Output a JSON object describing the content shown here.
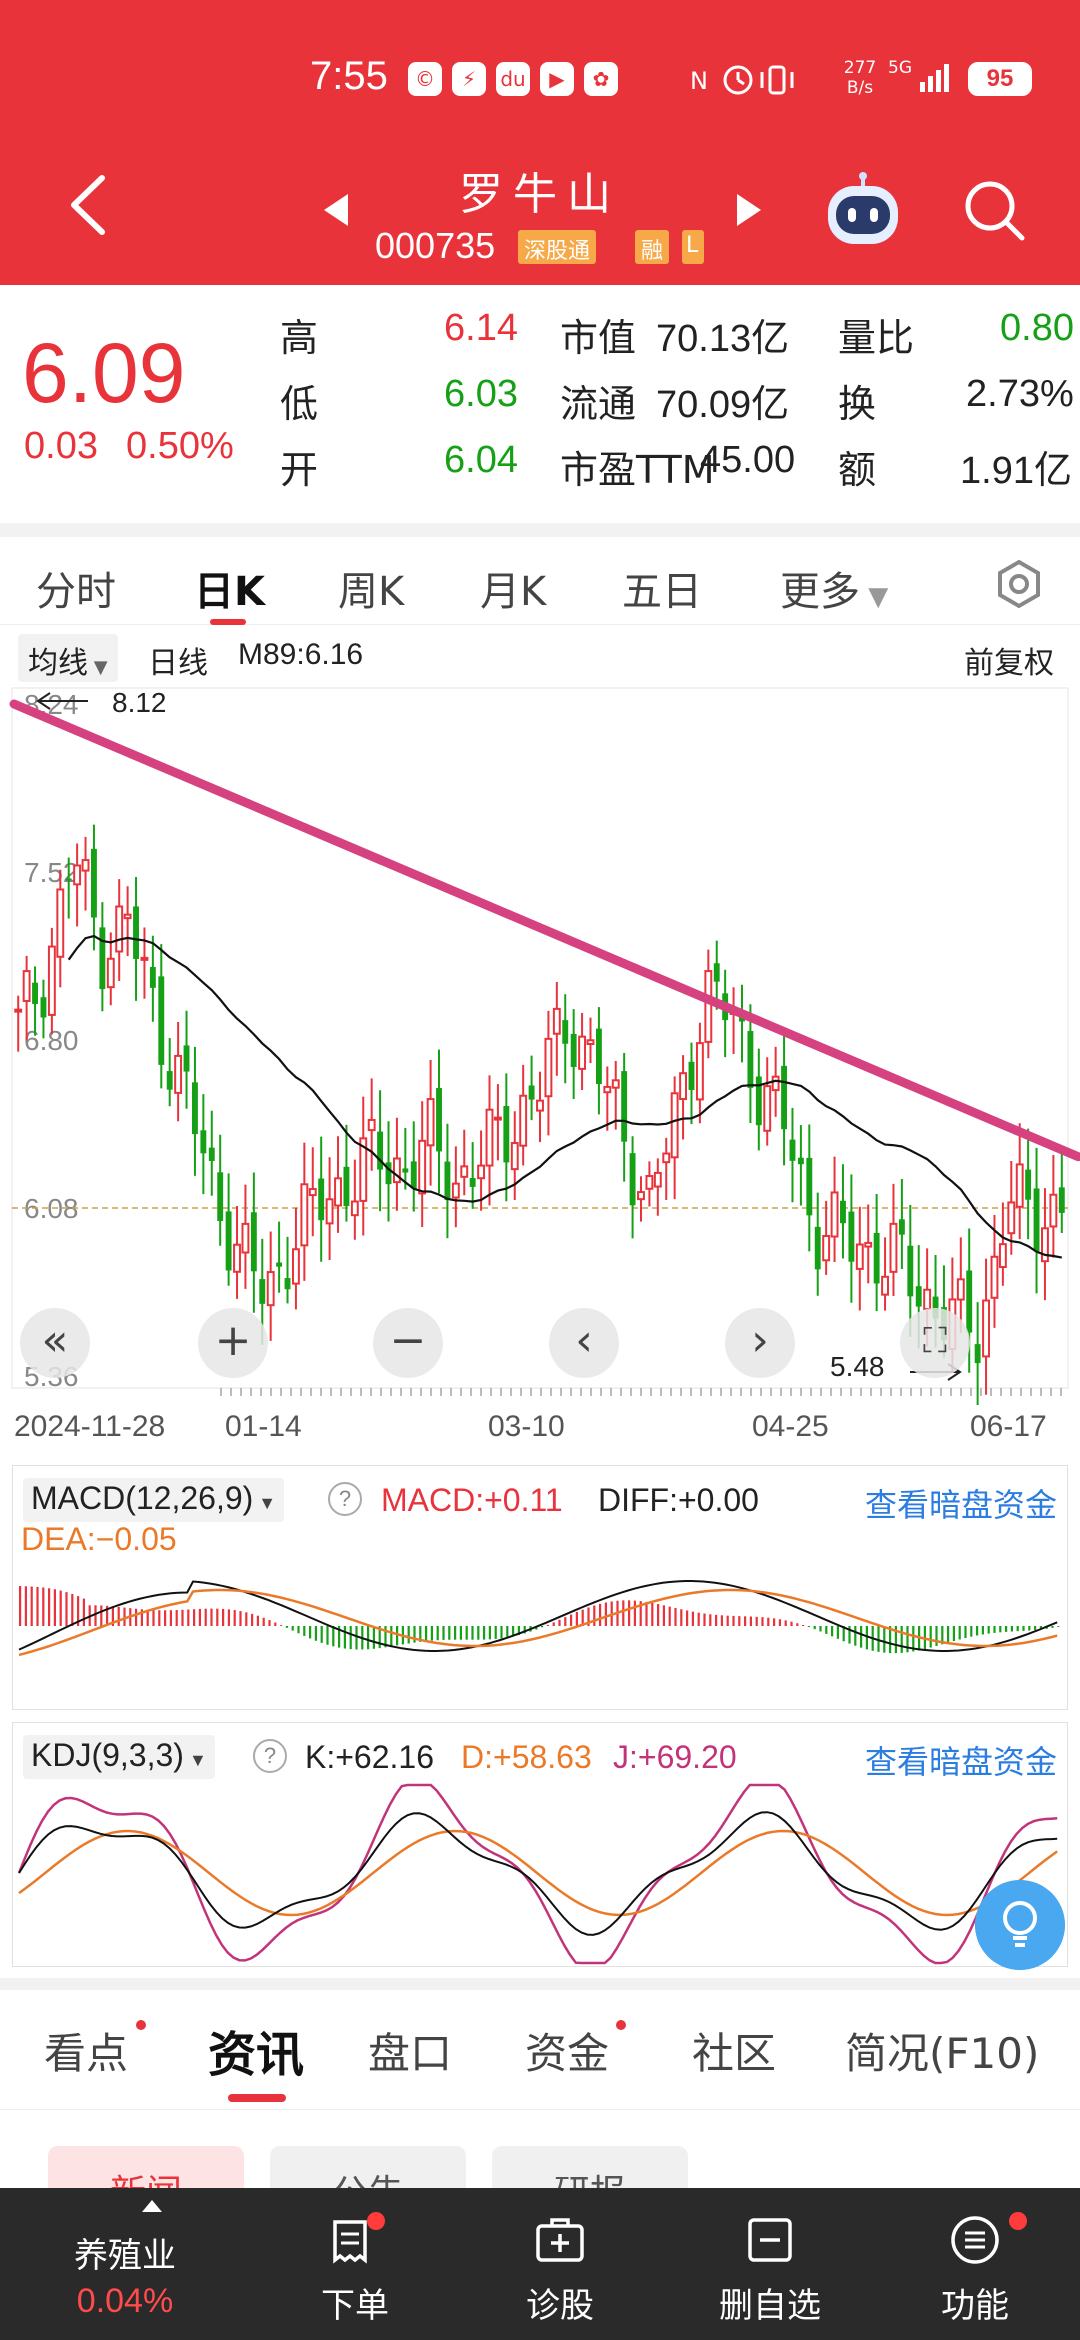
{
  "status_bar": {
    "time": "7:55",
    "speed": "277\nB/s",
    "speed_value": "277",
    "speed_unit": "B/s",
    "network": "5G",
    "battery": "95"
  },
  "header": {
    "stock_name": "罗牛山",
    "stock_code": "000735",
    "tag_connect": "深股通",
    "tag_margin": "融",
    "tag_extra": "L"
  },
  "quote": {
    "price": "6.09",
    "change": "0.03",
    "change_pct": "0.50%",
    "rows": [
      {
        "l1": "高",
        "v1": "6.14",
        "c1": "red",
        "l2": "市值",
        "v2": "70.13亿",
        "l3": "量比",
        "v3": "0.80",
        "c3": "green"
      },
      {
        "l1": "低",
        "v1": "6.03",
        "c1": "green",
        "l2": "流通",
        "v2": "70.09亿",
        "l3": "换",
        "v3": "2.73%",
        "c3": "dark"
      },
      {
        "l1": "开",
        "v1": "6.04",
        "c1": "green",
        "l2": "市盈TTM",
        "v2": "45.00",
        "l3": "额",
        "v3": "1.91亿",
        "c3": "dark"
      }
    ]
  },
  "period_tabs": [
    "分时",
    "日K",
    "周K",
    "月K",
    "五日",
    "更多"
  ],
  "active_period": "日K",
  "chart_toolbar": {
    "ma_select": "均线",
    "line_type": "日线",
    "ma_value": "M89:6.16",
    "adjust": "前复权"
  },
  "colors": {
    "up": "#e9333b",
    "down": "#16a016",
    "trendline": "#d6417f",
    "ma": "#111111",
    "header_bg": "#e9333b"
  },
  "chart_data": {
    "type": "candlestick",
    "x_labels": [
      "2024-11-28",
      "01-14",
      "03-10",
      "04-25",
      "06-17"
    ],
    "y_ticks": [
      "8.24",
      "7.52",
      "6.80",
      "6.08",
      "5.36"
    ],
    "y_range": [
      5.36,
      8.24
    ],
    "high_marker": "8.12",
    "low_marker": "5.48",
    "last_price_line": 6.08,
    "ma_label": "M89",
    "ma_value": 6.16,
    "trendline": {
      "from": {
        "x": "2024-11-28",
        "y": 8.24
      },
      "to": {
        "x": "06-17",
        "y": 6.3
      }
    },
    "closes_approx": [
      6.85,
      7.1,
      7.6,
      7.2,
      7.3,
      6.9,
      6.6,
      6.2,
      5.9,
      5.7,
      5.95,
      6.1,
      6.2,
      6.3,
      6.25,
      6.35,
      6.2,
      6.3,
      6.45,
      6.6,
      6.9,
      6.7,
      6.4,
      6.1,
      6.5,
      7.0,
      6.9,
      6.6,
      6.4,
      6.0,
      5.95,
      5.9,
      5.85,
      5.7,
      5.6,
      5.55,
      6.1,
      6.05,
      6.09
    ]
  },
  "macd": {
    "name": "MACD(12,26,9)",
    "macd": "MACD:+0.11",
    "diff": "DIFF:+0.00",
    "dea": "DEA:−0.05",
    "link": "查看暗盘资金"
  },
  "kdj": {
    "name": "KDJ(9,3,3)",
    "k": "K:+62.16",
    "d": "D:+58.63",
    "j": "J:+69.20",
    "link": "查看暗盘资金"
  },
  "info_tabs": [
    "看点",
    "资讯",
    "盘口",
    "资金",
    "社区",
    "简况(F10)"
  ],
  "active_info_tab": "资讯",
  "sub_tabs": [
    "新闻",
    "公告",
    "研报"
  ],
  "bottom_bar": {
    "sector_name": "养殖业",
    "sector_pct": "0.04%",
    "items": [
      "下单",
      "诊股",
      "删自选",
      "功能"
    ]
  }
}
